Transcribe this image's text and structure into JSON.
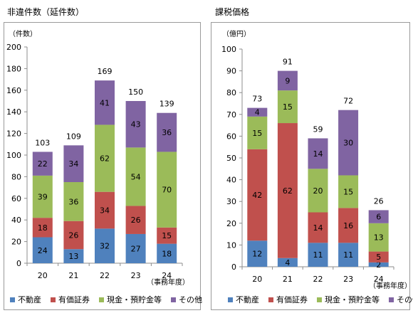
{
  "colors": {
    "series": [
      "#4f81bd",
      "#c0504d",
      "#9bbb59",
      "#8064a2"
    ],
    "grid": "#8c8c8c",
    "axis": "#8c8c8c"
  },
  "left_panel": {
    "title": "非違件数（延件数）"
  },
  "right_panel": {
    "title": "課税価格"
  },
  "chart_data": [
    {
      "type": "bar",
      "stacked": true,
      "title": "非違件数（延件数）",
      "ylabel": "（件数）",
      "xlabel": "（事務年度）",
      "categories": [
        "20",
        "21",
        "22",
        "23",
        "24"
      ],
      "ylim": [
        0,
        200
      ],
      "yticks": [
        0,
        20,
        40,
        60,
        80,
        100,
        120,
        140,
        160,
        180,
        200
      ],
      "series": [
        {
          "name": "不動産",
          "values": [
            24,
            13,
            32,
            27,
            18
          ]
        },
        {
          "name": "有価証券",
          "values": [
            18,
            26,
            34,
            26,
            15
          ]
        },
        {
          "name": "現金・預貯金等",
          "values": [
            39,
            36,
            62,
            54,
            70
          ]
        },
        {
          "name": "その他",
          "values": [
            22,
            34,
            41,
            43,
            36
          ]
        }
      ],
      "totals": [
        103,
        109,
        169,
        150,
        139
      ],
      "grid": false,
      "legend": "bottom"
    },
    {
      "type": "bar",
      "stacked": true,
      "title": "課税価格",
      "ylabel": "（億円）",
      "xlabel": "（事務年度）",
      "categories": [
        "20",
        "21",
        "22",
        "23",
        "24"
      ],
      "ylim": [
        0,
        100
      ],
      "yticks": [
        0,
        10,
        20,
        30,
        40,
        50,
        60,
        70,
        80,
        90,
        100
      ],
      "series": [
        {
          "name": "不動産",
          "values": [
            12,
            4,
            11,
            11,
            2
          ]
        },
        {
          "name": "有価証券",
          "values": [
            42,
            62,
            14,
            16,
            5
          ]
        },
        {
          "name": "現金・預貯金等",
          "values": [
            15,
            15,
            20,
            15,
            13
          ]
        },
        {
          "name": "その他",
          "values": [
            4,
            9,
            14,
            30,
            6
          ]
        }
      ],
      "totals": [
        73,
        91,
        59,
        72,
        26
      ],
      "grid": false,
      "legend": "bottom"
    }
  ]
}
